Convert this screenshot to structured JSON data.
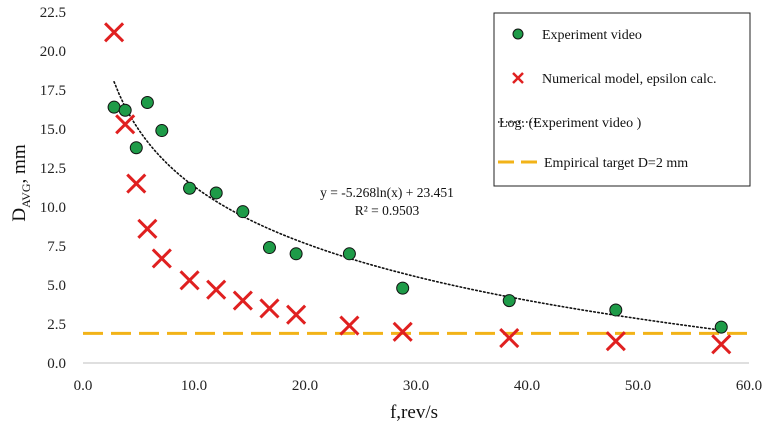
{
  "chart_data": {
    "type": "scatter",
    "xlabel": "f,rev/s",
    "ylabel_main": "D",
    "ylabel_sub": "AVG",
    "ylabel_unit": ", mm",
    "xlim": [
      0,
      60
    ],
    "ylim": [
      0,
      22.5
    ],
    "x_ticks": [
      "0.0",
      "10.0",
      "20.0",
      "30.0",
      "40.0",
      "50.0",
      "60.0"
    ],
    "y_ticks": [
      "0.0",
      "2.5",
      "5.0",
      "7.5",
      "10.0",
      "12.5",
      "15.0",
      "17.5",
      "20.0",
      "22.5"
    ],
    "grid": false,
    "legend_position": "top-right",
    "series": [
      {
        "name": "Experiment video",
        "marker": "circle",
        "color": "#1e9b48",
        "points": [
          [
            2.8,
            16.4
          ],
          [
            3.8,
            16.2
          ],
          [
            4.8,
            13.8
          ],
          [
            5.8,
            16.7
          ],
          [
            7.1,
            14.9
          ],
          [
            9.6,
            11.2
          ],
          [
            12.0,
            10.9
          ],
          [
            14.4,
            9.7
          ],
          [
            16.8,
            7.4
          ],
          [
            19.2,
            7.0
          ],
          [
            24.0,
            7.0
          ],
          [
            28.8,
            4.8
          ],
          [
            38.4,
            4.0
          ],
          [
            48.0,
            3.4
          ],
          [
            57.5,
            2.3
          ]
        ]
      },
      {
        "name": "Numerical model, epsilon calc.",
        "marker": "x",
        "color": "#e02020",
        "points": [
          [
            2.8,
            21.2
          ],
          [
            3.8,
            15.3
          ],
          [
            4.8,
            11.5
          ],
          [
            5.8,
            8.6
          ],
          [
            7.1,
            6.7
          ],
          [
            9.6,
            5.3
          ],
          [
            12.0,
            4.7
          ],
          [
            14.4,
            4.0
          ],
          [
            16.8,
            3.5
          ],
          [
            19.2,
            3.1
          ],
          [
            24.0,
            2.4
          ],
          [
            28.8,
            2.0
          ],
          [
            38.4,
            1.6
          ],
          [
            48.0,
            1.4
          ],
          [
            57.5,
            1.2
          ]
        ]
      },
      {
        "name": "Log. (Experiment video )",
        "type": "line",
        "style": "dotted",
        "color": "#111111",
        "x_range": [
          2.8,
          57.5
        ],
        "a": -5.268,
        "b": 23.451
      },
      {
        "name": "Empirical target D=2 mm",
        "type": "line",
        "style": "dashed",
        "color": "#f2b318",
        "x_range": [
          0,
          60
        ],
        "y": 1.9
      }
    ],
    "annotations": {
      "equation": "y = -5.268ln(x) + 23.451",
      "r_squared": "R² = 0.9503"
    }
  }
}
